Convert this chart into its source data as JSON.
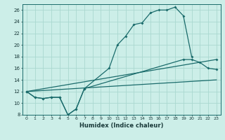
{
  "xlabel": "Humidex (Indice chaleur)",
  "bg_color": "#cceee8",
  "grid_color": "#aad8d0",
  "line_color": "#1a6b6b",
  "xlim": [
    -0.5,
    23.5
  ],
  "ylim": [
    8,
    27
  ],
  "xticks": [
    0,
    1,
    2,
    3,
    4,
    5,
    6,
    7,
    8,
    9,
    10,
    11,
    12,
    13,
    14,
    15,
    16,
    17,
    18,
    19,
    20,
    21,
    22,
    23
  ],
  "yticks": [
    8,
    10,
    12,
    14,
    16,
    18,
    20,
    22,
    24,
    26
  ],
  "curve1_x": [
    0,
    1,
    2,
    3,
    4,
    5,
    6,
    7,
    10,
    11,
    12,
    13,
    14,
    15,
    16,
    17,
    18,
    19,
    20
  ],
  "curve1_y": [
    12,
    11,
    10.8,
    11,
    11,
    8,
    9,
    12.5,
    16,
    20,
    21.5,
    23.5,
    23.8,
    25.5,
    26,
    26,
    26.5,
    25,
    18
  ],
  "curve2_x": [
    0,
    1,
    2,
    3,
    4,
    5,
    6,
    7,
    19,
    20,
    21,
    22,
    23
  ],
  "curve2_y": [
    12,
    11,
    10.8,
    11,
    11,
    8,
    9,
    12.5,
    17.5,
    17.5,
    17,
    16,
    15.8
  ]
}
